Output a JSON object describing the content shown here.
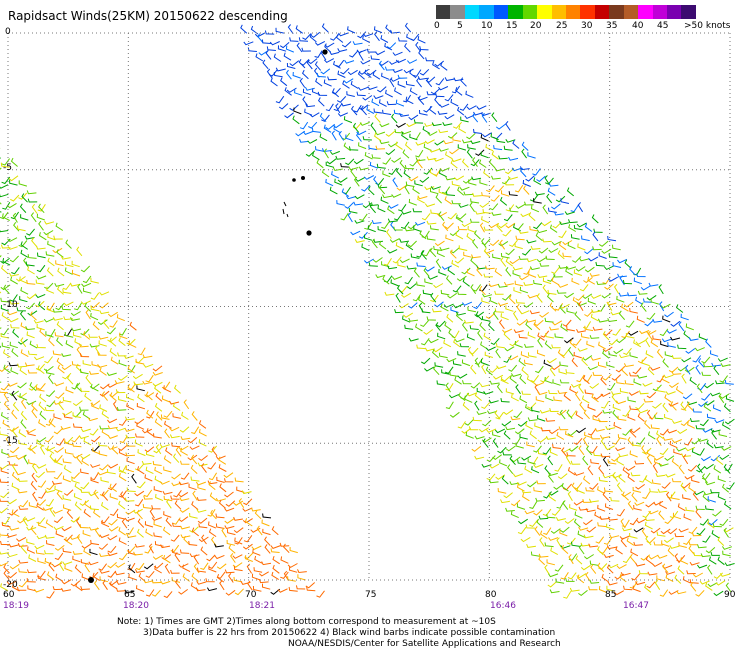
{
  "title": "Rapidsact Winds(25KM) 20150622 descending",
  "legend": {
    "colors": [
      "#3c3c3c",
      "#8c8c8c",
      "#00d8ff",
      "#00a8ff",
      "#0058ff",
      "#00b400",
      "#62d800",
      "#ffff00",
      "#ffbe00",
      "#ff8200",
      "#ff3200",
      "#c40000",
      "#7a3a1e",
      "#b45c28",
      "#ff00ff",
      "#c000d8",
      "#7a00b0",
      "#3c0a70"
    ],
    "labels": [
      "0",
      "5",
      "10",
      "15",
      "20",
      "25",
      "30",
      "35",
      "40",
      "45",
      ">50 knots"
    ]
  },
  "map": {
    "lon_range": [
      60,
      90
    ],
    "lat_range": [
      -20,
      0
    ],
    "lon_ticks": [
      "60",
      "65",
      "70",
      "75",
      "80",
      "85",
      "90"
    ],
    "lat_ticks": [
      "0",
      "-5",
      "-10",
      "-15",
      "-20"
    ],
    "grid": "dotted",
    "swaths": [
      {
        "id": "west",
        "bottom_times": [
          "18:19",
          "18:20",
          "18:21"
        ]
      },
      {
        "id": "east",
        "bottom_times": [
          "16:46",
          "16:47"
        ]
      }
    ]
  },
  "time_labels": [
    {
      "lon": 60,
      "text": "18:19"
    },
    {
      "lon": 65,
      "text": "18:20"
    },
    {
      "lon": 70,
      "text": "18:21"
    },
    {
      "lon": 80,
      "text": "16:46"
    },
    {
      "lon": 85,
      "text": "16:47"
    }
  ],
  "notes": [
    "Note: 1) Times are GMT 2)Times along bottom correspond to measurement at ~10S",
    "3)Data buffer is 22 hrs from 20150622 4) Black wind barbs indicate possible contamination",
    "NOAA/NESDIS/Center for Satellite Applications and Research"
  ]
}
